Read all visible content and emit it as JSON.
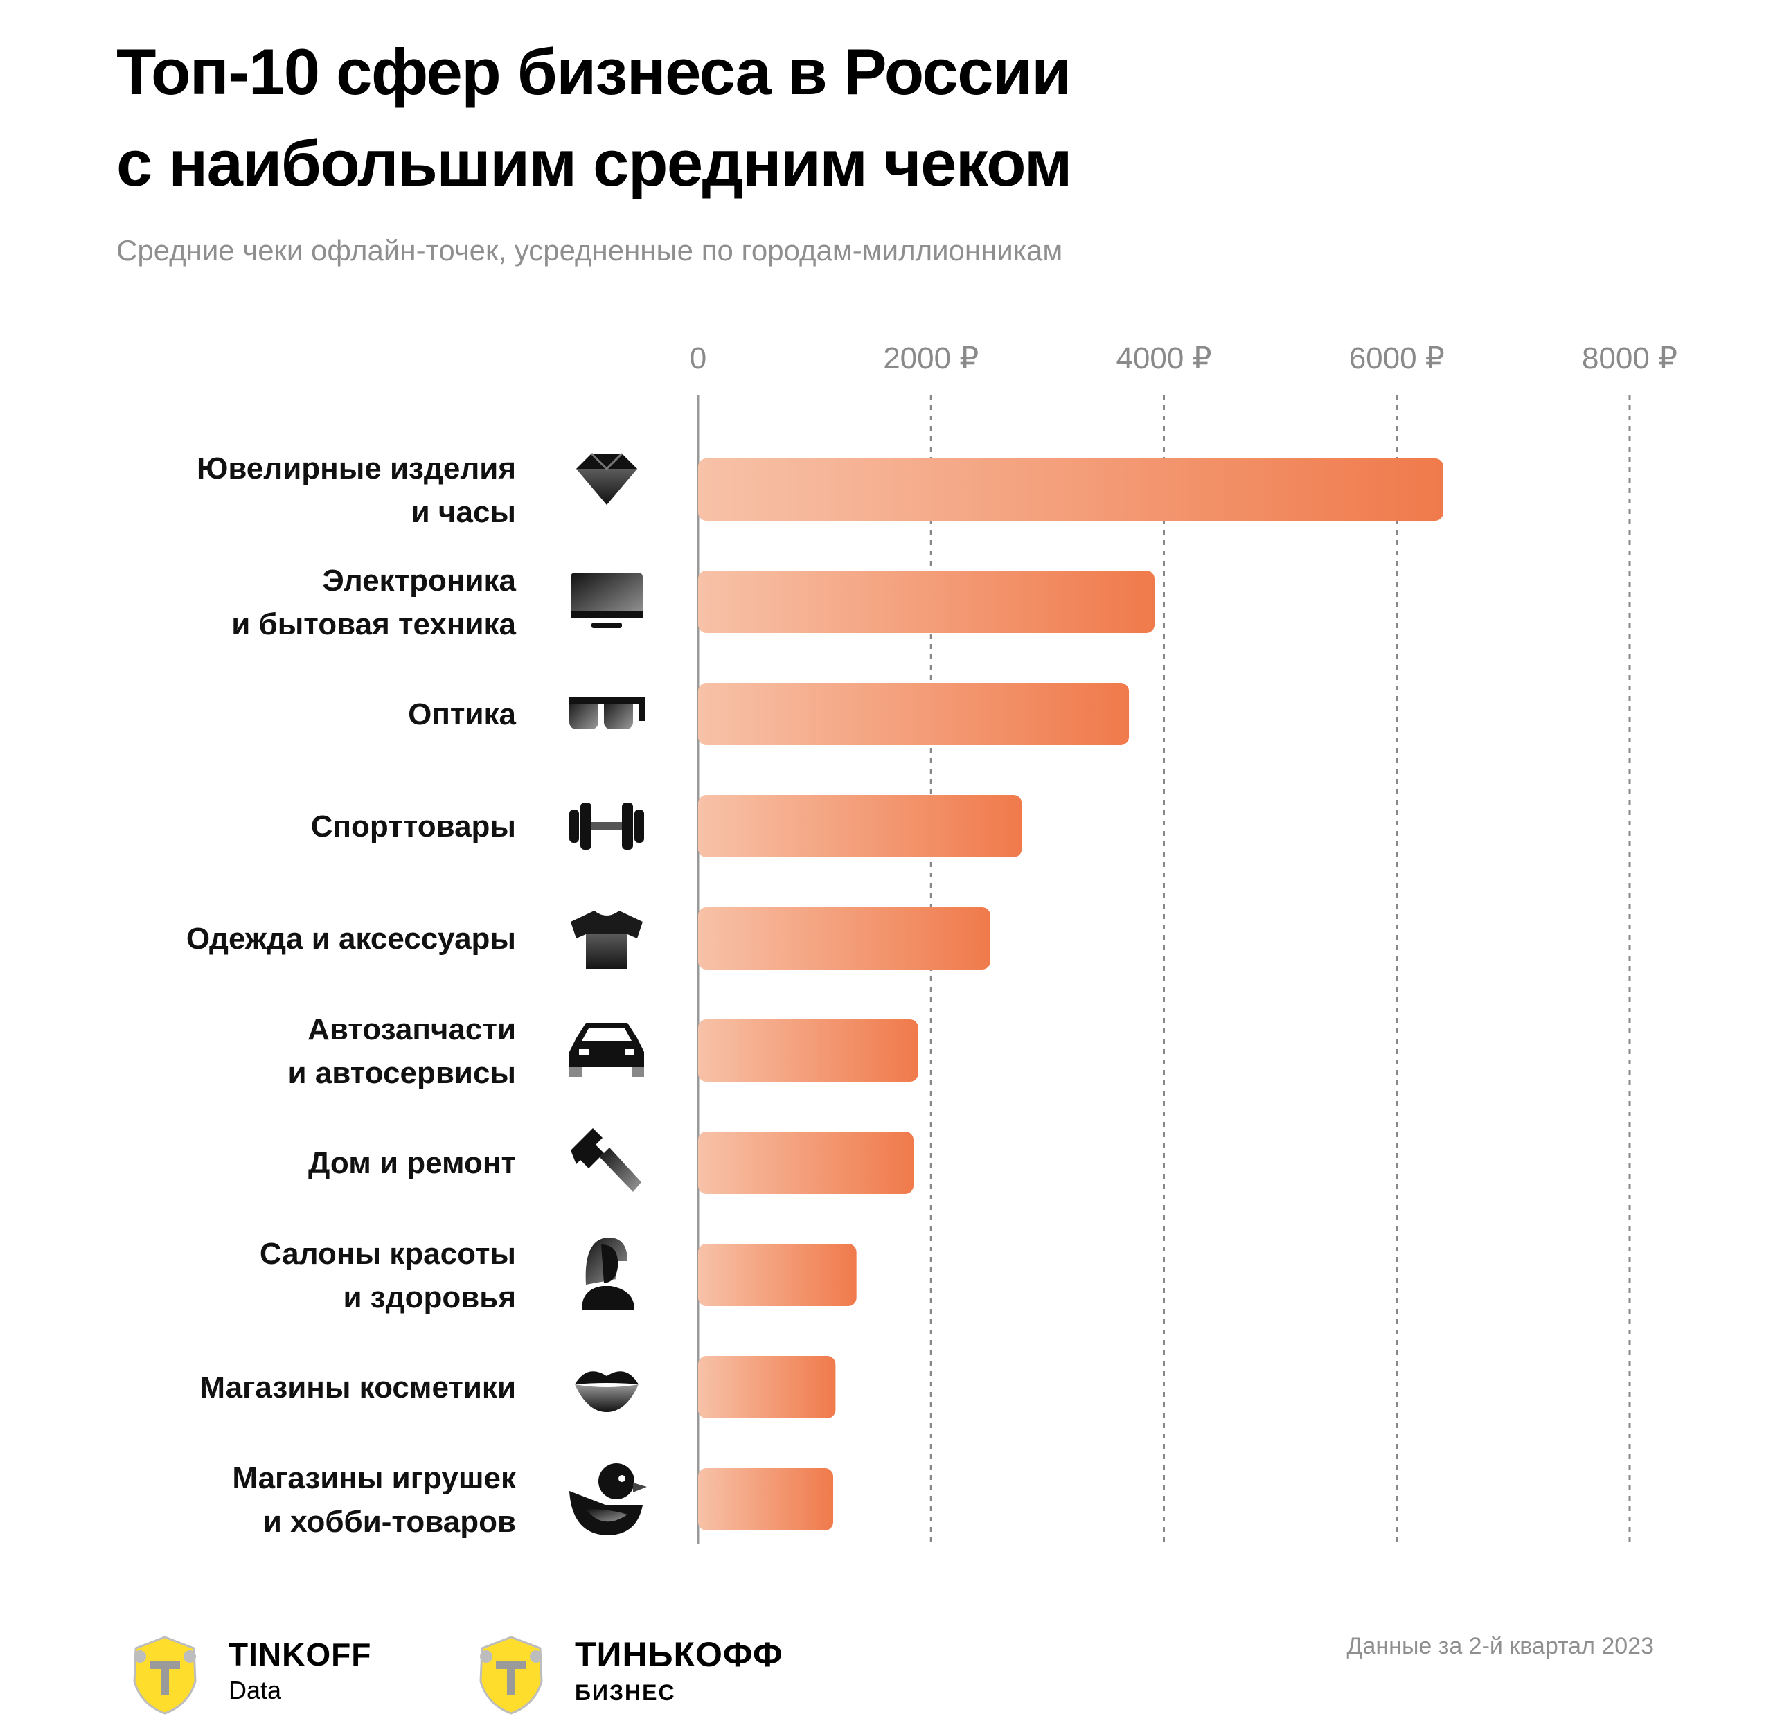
{
  "title_line1": "Топ-10 сфер бизнеса в России",
  "title_line2": "с наибольшим средним чеком",
  "subtitle": "Средние чеки офлайн-точек, усредненные по городам-миллионникам",
  "note": "Данные за 2-й квартал 2023",
  "colors": {
    "bar_light": "#F7C2A8",
    "bar_dark": "#F07A4B",
    "grid": "#888888",
    "axis_text": "#8a8a8a"
  },
  "logos": [
    {
      "name": "TINKOFF",
      "sub": "Data",
      "icon": "tinkoff-crest-icon"
    },
    {
      "name": "ТИНЬКОФФ",
      "sub": "БИЗНЕС",
      "icon": "tinkoff-crest-icon"
    }
  ],
  "chart_data": {
    "type": "bar",
    "orientation": "horizontal",
    "title": "Топ-10 сфер бизнеса в России с наибольшим средним чеком",
    "xlabel": "",
    "ylabel": "",
    "xlim": [
      0,
      8000
    ],
    "xticks": [
      0,
      2000,
      4000,
      6000,
      8000
    ],
    "xtick_labels": [
      "0",
      "2000 ₽",
      "4000 ₽",
      "6000 ₽",
      "8000 ₽"
    ],
    "grid": true,
    "categories": [
      {
        "lines": [
          "Ювелирные изделия",
          "и часы"
        ],
        "icon": "diamond-icon"
      },
      {
        "lines": [
          "Электроника",
          "и бытовая техника"
        ],
        "icon": "monitor-icon"
      },
      {
        "lines": [
          "Оптика"
        ],
        "icon": "glasses-icon"
      },
      {
        "lines": [
          "Спорттовары"
        ],
        "icon": "dumbbell-icon"
      },
      {
        "lines": [
          "Одежда и аксессуары"
        ],
        "icon": "tshirt-icon"
      },
      {
        "lines": [
          "Автозапчасти",
          "и  автосервисы"
        ],
        "icon": "car-icon"
      },
      {
        "lines": [
          "Дом и ремонт"
        ],
        "icon": "hammer-icon"
      },
      {
        "lines": [
          "Салоны красоты",
          "и здоровья"
        ],
        "icon": "woman-icon"
      },
      {
        "lines": [
          "Магазины косметики"
        ],
        "icon": "lips-icon"
      },
      {
        "lines": [
          "Магазины игрушек",
          "и хобби-товаров"
        ],
        "icon": "duck-icon"
      }
    ],
    "values": [
      6400,
      3920,
      3700,
      2780,
      2510,
      1890,
      1850,
      1360,
      1180,
      1160
    ]
  }
}
